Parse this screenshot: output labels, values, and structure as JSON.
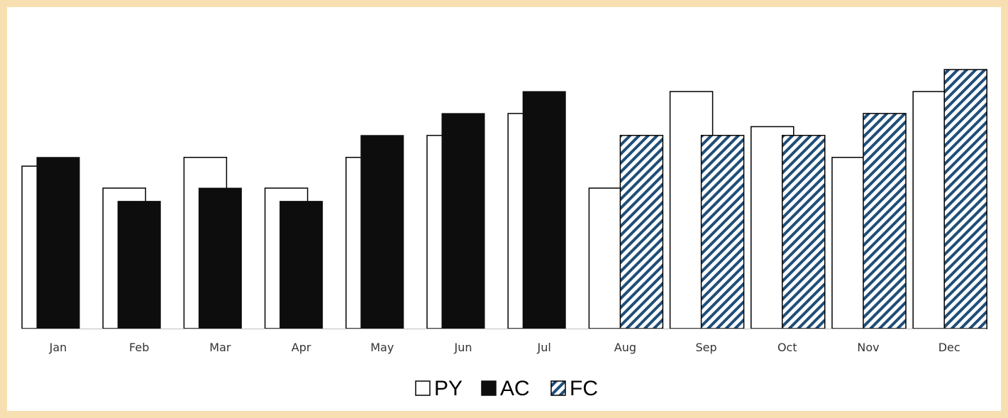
{
  "chart_data": {
    "type": "bar",
    "categories": [
      "Jan",
      "Feb",
      "Mar",
      "Apr",
      "May",
      "Jun",
      "Jul",
      "Aug",
      "Sep",
      "Oct",
      "Nov",
      "Dec"
    ],
    "series": [
      {
        "name": "PY",
        "values": [
          74,
          64,
          78,
          64,
          78,
          88,
          98,
          64,
          108,
          92,
          78,
          108
        ],
        "style": "outline"
      },
      {
        "name": "AC",
        "values": [
          78,
          58,
          64,
          58,
          88,
          98,
          108,
          null,
          null,
          null,
          null,
          null
        ],
        "style": "solid"
      },
      {
        "name": "FC",
        "values": [
          null,
          null,
          null,
          null,
          null,
          null,
          null,
          88,
          88,
          88,
          98,
          118
        ],
        "style": "hatched"
      }
    ],
    "title": "",
    "xlabel": "",
    "ylabel": "",
    "ylim": [
      0,
      140
    ],
    "grid": false,
    "legend_position": "bottom-center",
    "colors": {
      "outline": "#000000",
      "solid": "#0d0d0d",
      "hatch": "#1f4e79",
      "background": "#ffffff",
      "frame": "#f8dfb1"
    }
  }
}
